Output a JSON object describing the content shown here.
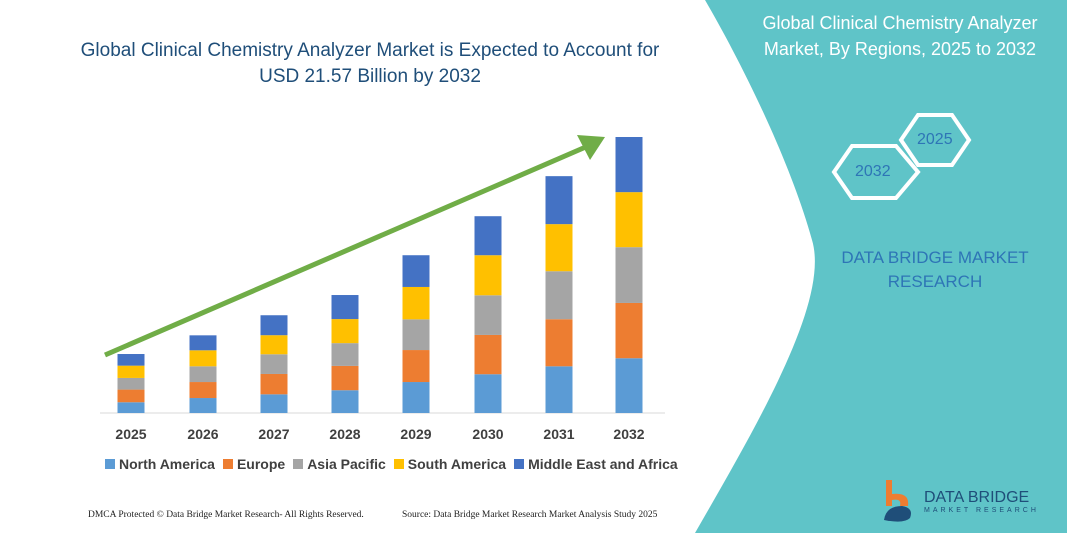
{
  "title": "Global Clinical Chemistry Analyzer Market is Expected to Account for  USD 21.57 Billion by 2032",
  "side_panel": {
    "title": "Global Clinical Chemistry Analyzer Market, By Regions, 2025 to 2032",
    "hex_start": "2025",
    "hex_end": "2032",
    "brand": "DATA BRIDGE MARKET RESEARCH",
    "color": "#5fc4c8"
  },
  "footer": {
    "left": "DMCA Protected © Data Bridge Market Research- All Rights Reserved.",
    "right": "Source: Data Bridge Market Research  Market Analysis Study 2025"
  },
  "logo": {
    "name": "DATA BRIDGE",
    "sub": "MARKET RESEARCH"
  },
  "chart_data": {
    "type": "bar",
    "stacked": true,
    "categories": [
      "2025",
      "2026",
      "2027",
      "2028",
      "2029",
      "2030",
      "2031",
      "2032"
    ],
    "series": [
      {
        "name": "North America",
        "color": "#5b9bd5",
        "values": [
          0.84,
          1.17,
          1.46,
          1.78,
          2.42,
          3.03,
          3.65,
          4.28
        ]
      },
      {
        "name": "Europe",
        "color": "#ed7d31",
        "values": [
          0.99,
          1.25,
          1.59,
          1.9,
          2.5,
          3.07,
          3.68,
          4.32
        ]
      },
      {
        "name": "Asia Pacific",
        "color": "#a5a5a5",
        "values": [
          0.91,
          1.23,
          1.54,
          1.78,
          2.4,
          3.1,
          3.75,
          4.36
        ]
      },
      {
        "name": "South America",
        "color": "#ffc000",
        "values": [
          0.96,
          1.25,
          1.49,
          1.88,
          2.53,
          3.13,
          3.68,
          4.3
        ]
      },
      {
        "name": "Middle East and Africa",
        "color": "#4472c4",
        "values": [
          0.91,
          1.17,
          1.56,
          1.88,
          2.48,
          3.05,
          3.75,
          4.31
        ]
      }
    ],
    "ylim": [
      0,
      21.57
    ],
    "grid": false,
    "legend": "bottom",
    "trend_arrow_color": "#70ad47"
  }
}
